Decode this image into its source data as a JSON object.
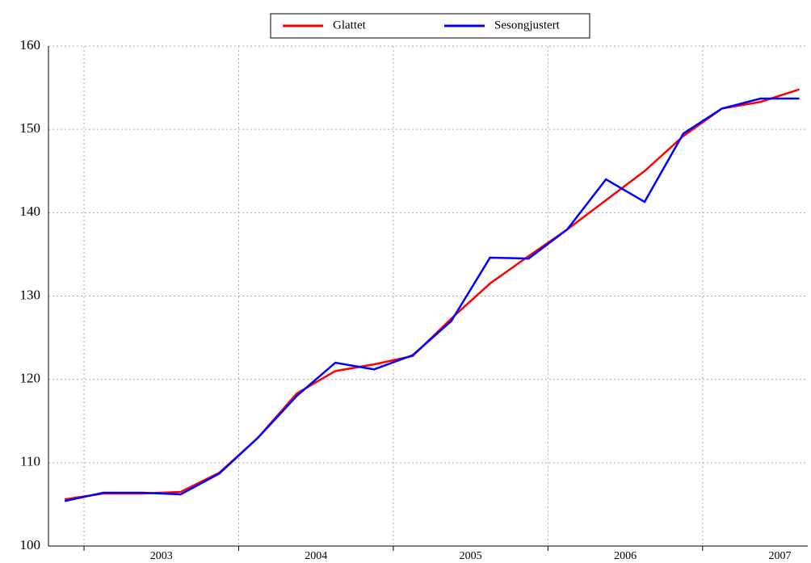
{
  "chart_data": {
    "type": "line",
    "x": [
      2002.875,
      2003.125,
      2003.375,
      2003.625,
      2003.875,
      2004.125,
      2004.375,
      2004.625,
      2004.875,
      2005.125,
      2005.375,
      2005.625,
      2005.875,
      2006.125,
      2006.375,
      2006.625,
      2006.875,
      2007.125,
      2007.375,
      2007.625
    ],
    "series": [
      {
        "name": "Glattet",
        "color": "#ff0000",
        "values": [
          105.6,
          106.3,
          106.3,
          106.5,
          108.8,
          113,
          118.3,
          121,
          121.8,
          122.8,
          127.3,
          131.5,
          134.8,
          138,
          141.5,
          145,
          149.2,
          152.5,
          153.3,
          154.8
        ]
      },
      {
        "name": "Sesongjustert",
        "color": "#0000ff",
        "values": [
          105.4,
          106.4,
          106.4,
          106.2,
          108.7,
          113,
          118,
          122,
          121.2,
          122.9,
          127,
          134.6,
          134.5,
          138,
          144,
          141.3,
          149.5,
          152.5,
          153.7,
          153.7
        ]
      }
    ],
    "xlim": [
      2002.77,
      2007.68
    ],
    "xticks": [
      {
        "value": 2003.5,
        "label": "2003"
      },
      {
        "value": 2004.5,
        "label": "2004"
      },
      {
        "value": 2005.5,
        "label": "2005"
      },
      {
        "value": 2006.5,
        "label": "2006"
      },
      {
        "value": 2007.5,
        "label": "2007"
      }
    ],
    "xgrid": [
      2003,
      2004,
      2005,
      2006,
      2007
    ],
    "ylim": [
      100,
      160
    ],
    "yticks": [
      100,
      110,
      120,
      130,
      140,
      150,
      160
    ],
    "grid": true,
    "legend": "top"
  }
}
